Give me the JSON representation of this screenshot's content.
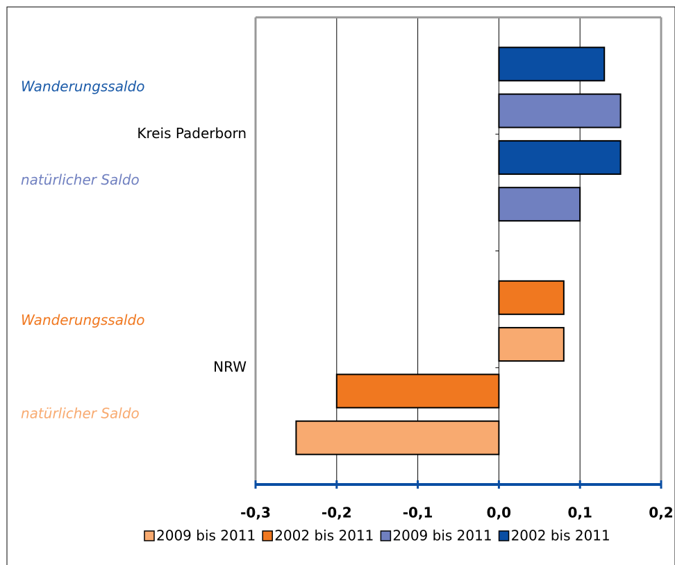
{
  "chart_data": {
    "type": "barh",
    "groups": [
      "Kreis Paderborn",
      "NRW"
    ],
    "categories": [
      "Wanderungssaldo",
      "natürlicher Saldo",
      "Wanderungssaldo",
      "natürlicher Saldo"
    ],
    "category_colors": [
      "#1a5aa8",
      "#7080c0",
      "#f07820",
      "#f8aa70"
    ],
    "series": [
      {
        "name": "2009 bis 2011",
        "color": "#f8aa70",
        "values": [
          null,
          null,
          0.08,
          -0.25
        ]
      },
      {
        "name": "2002 bis 2011",
        "color": "#f07820",
        "values": [
          null,
          null,
          0.08,
          -0.2
        ]
      },
      {
        "name": "2009 bis 2011",
        "color": "#7080c0",
        "values": [
          0.15,
          0.1,
          null,
          null
        ]
      },
      {
        "name": "2002 bis 2011",
        "color": "#0a4ea3",
        "values": [
          0.13,
          0.15,
          null,
          null
        ]
      }
    ],
    "xlim": [
      -0.3,
      0.2
    ],
    "xticks": [
      {
        "value": -0.3,
        "label": "-0,3"
      },
      {
        "value": -0.2,
        "label": "-0,2"
      },
      {
        "value": -0.1,
        "label": "-0,1"
      },
      {
        "value": 0,
        "label": "0,0"
      },
      {
        "value": 0.1,
        "label": "0,1"
      },
      {
        "value": 0.2,
        "label": "0,2"
      }
    ],
    "grid": true,
    "legend": "bottom"
  }
}
